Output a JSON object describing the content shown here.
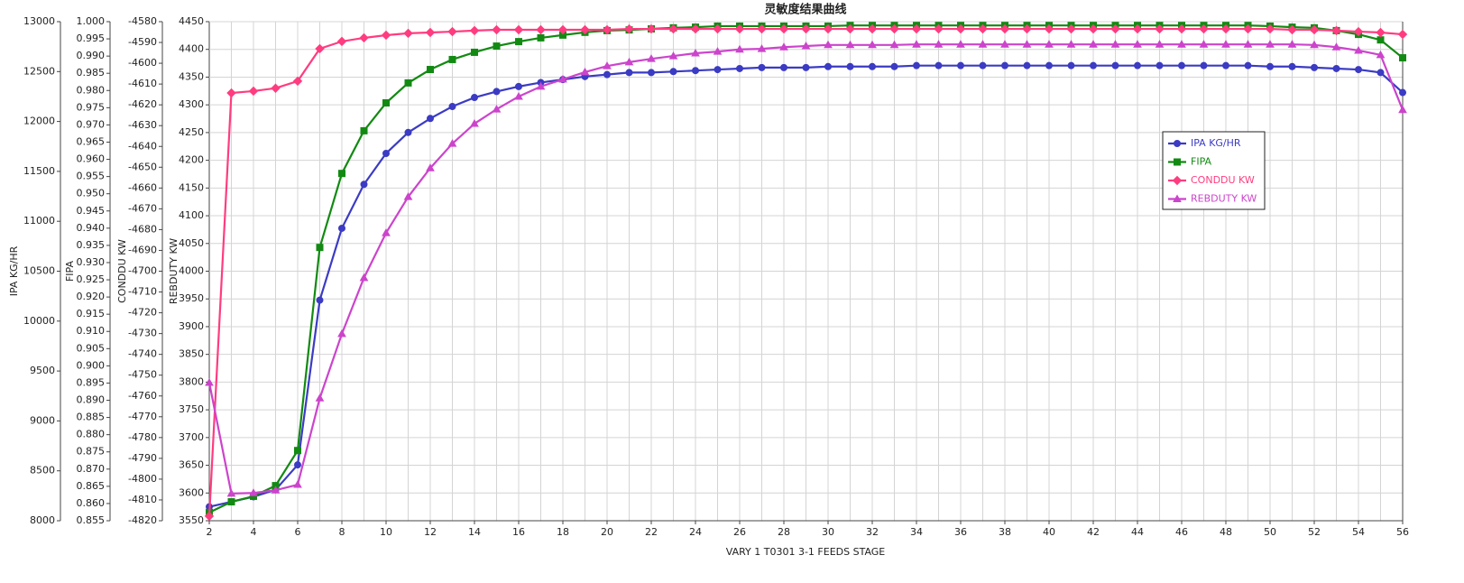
{
  "chart_data": {
    "type": "line",
    "title": "灵敏度结果曲线",
    "x_label": "VARY   1 T0301 3-1 FEEDS STAGE",
    "x": [
      2,
      3,
      4,
      5,
      6,
      7,
      8,
      9,
      10,
      11,
      12,
      13,
      14,
      15,
      16,
      17,
      18,
      19,
      20,
      21,
      22,
      23,
      24,
      25,
      26,
      27,
      28,
      29,
      30,
      31,
      32,
      33,
      34,
      35,
      36,
      37,
      38,
      39,
      40,
      41,
      42,
      43,
      44,
      45,
      46,
      47,
      48,
      49,
      50,
      51,
      52,
      53,
      54,
      55,
      56
    ],
    "xlim": [
      2,
      56
    ],
    "xticks": [
      2,
      4,
      6,
      8,
      10,
      12,
      14,
      16,
      18,
      20,
      22,
      24,
      26,
      28,
      30,
      32,
      34,
      36,
      38,
      40,
      42,
      44,
      46,
      48,
      50,
      52,
      54,
      56
    ],
    "x_minor_ticks": [
      3,
      5,
      7,
      9,
      11,
      13,
      15,
      17,
      19,
      21,
      23,
      25,
      27,
      29,
      31,
      33,
      35,
      37,
      39,
      41,
      43,
      45,
      47,
      49,
      51,
      53,
      55
    ],
    "grid": true,
    "legend": "right",
    "y_axes": [
      {
        "label": "IPA KG/HR",
        "ylim": [
          8000,
          13000
        ],
        "yticks": [
          8000,
          8500,
          9000,
          9500,
          10000,
          10500,
          11000,
          11500,
          12000,
          12500,
          13000
        ]
      },
      {
        "label": "FIPA",
        "ylim": [
          0.855,
          1.0
        ],
        "yticks": [
          0.855,
          {
            "value": 0.86,
            "label": "0.860"
          },
          0.865,
          {
            "value": 0.87,
            "label": "0.870"
          },
          0.875,
          {
            "value": 0.88,
            "label": "0.880"
          },
          0.885,
          {
            "value": 0.89,
            "label": "0.890"
          },
          0.895,
          {
            "value": 0.9,
            "label": "0.900"
          },
          0.905,
          {
            "value": 0.91,
            "label": "0.910"
          },
          0.915,
          {
            "value": 0.92,
            "label": "0.920"
          },
          0.925,
          {
            "value": 0.93,
            "label": "0.930"
          },
          0.935,
          {
            "value": 0.94,
            "label": "0.940"
          },
          0.945,
          {
            "value": 0.95,
            "label": "0.950"
          },
          0.955,
          {
            "value": 0.96,
            "label": "0.960"
          },
          0.965,
          {
            "value": 0.97,
            "label": "0.970"
          },
          0.975,
          {
            "value": 0.98,
            "label": "0.980"
          },
          0.985,
          {
            "value": 0.99,
            "label": "0.990"
          },
          0.995,
          {
            "value": 1.0,
            "label": "1.000"
          }
        ]
      },
      {
        "label": "CONDDU KW",
        "ylim": [
          -4820,
          -4580
        ],
        "yticks": [
          -4820,
          -4810,
          -4800,
          -4790,
          -4780,
          -4770,
          -4760,
          -4750,
          -4740,
          -4730,
          -4720,
          -4710,
          -4700,
          -4690,
          -4680,
          -4670,
          -4660,
          -4650,
          -4640,
          -4630,
          -4620,
          -4610,
          -4600,
          -4590,
          -4580
        ]
      },
      {
        "label": "REBDUTY KW",
        "ylim": [
          3550,
          4450
        ],
        "yticks": [
          3550,
          3600,
          3650,
          3700,
          3750,
          3800,
          3850,
          3900,
          3950,
          4000,
          4050,
          4100,
          4150,
          4200,
          4250,
          4300,
          4350,
          4400,
          4450
        ]
      }
    ],
    "series": [
      {
        "name": "IPA KG/HR",
        "color": "#3b3bc4",
        "marker": "circle",
        "axis": 0,
        "values": [
          8140,
          8190,
          8240,
          8310,
          8560,
          10210,
          10930,
          11370,
          11680,
          11890,
          12030,
          12150,
          12240,
          12300,
          12350,
          12390,
          12420,
          12450,
          12470,
          12490,
          12490,
          12500,
          12510,
          12520,
          12530,
          12540,
          12540,
          12540,
          12550,
          12550,
          12550,
          12550,
          12560,
          12560,
          12560,
          12560,
          12560,
          12560,
          12560,
          12560,
          12560,
          12560,
          12560,
          12560,
          12560,
          12560,
          12560,
          12560,
          12550,
          12550,
          12540,
          12530,
          12520,
          12490,
          12290
        ]
      },
      {
        "name": "FIPA",
        "color": "#128a12",
        "marker": "square",
        "axis": 1,
        "values": [
          0.8574,
          0.8605,
          0.8621,
          0.8652,
          0.8754,
          0.9344,
          0.9559,
          0.9683,
          0.9764,
          0.9822,
          0.9861,
          0.989,
          0.9911,
          0.9929,
          0.9942,
          0.9953,
          0.9961,
          0.9969,
          0.9974,
          0.9976,
          0.9979,
          0.9982,
          0.9984,
          0.9987,
          0.9987,
          0.9987,
          0.9987,
          0.9987,
          0.9987,
          0.9989,
          0.9989,
          0.9989,
          0.9989,
          0.9989,
          0.9989,
          0.9989,
          0.9989,
          0.9989,
          0.9989,
          0.9989,
          0.9989,
          0.9989,
          0.9989,
          0.9989,
          0.9989,
          0.9989,
          0.9989,
          0.9989,
          0.9987,
          0.9984,
          0.9982,
          0.9974,
          0.9963,
          0.9947,
          0.9895
        ]
      },
      {
        "name": "CONDDU KW",
        "color": "#ff3c80",
        "marker": "diamond",
        "axis": 2,
        "values": [
          -4817.8,
          -4614.3,
          -4613.4,
          -4612,
          -4608.6,
          -4593,
          -4589.5,
          -4587.8,
          -4586.5,
          -4585.6,
          -4585.2,
          -4584.8,
          -4584.3,
          -4583.9,
          -4583.9,
          -4583.9,
          -4583.9,
          -4583.9,
          -4583.9,
          -4583.5,
          -4583.5,
          -4583.5,
          -4583.5,
          -4583.5,
          -4583.5,
          -4583.5,
          -4583.5,
          -4583.5,
          -4583.5,
          -4583.5,
          -4583.5,
          -4583.5,
          -4583.5,
          -4583.5,
          -4583.5,
          -4583.5,
          -4583.5,
          -4583.5,
          -4583.5,
          -4583.5,
          -4583.5,
          -4583.5,
          -4583.5,
          -4583.5,
          -4583.5,
          -4583.5,
          -4583.5,
          -4583.5,
          -4583.5,
          -4583.9,
          -4583.9,
          -4584.3,
          -4584.8,
          -4585.2,
          -4586.1
        ]
      },
      {
        "name": "REBDUTY KW",
        "color": "#cc44cc",
        "marker": "triangle",
        "axis": 3,
        "values": [
          3799,
          3599,
          3600,
          3605,
          3615,
          3771,
          3887,
          3988,
          4069,
          4134,
          4186,
          4230,
          4266,
          4292,
          4315,
          4333,
          4346,
          4359,
          4370,
          4377,
          4383,
          4388,
          4393,
          4396,
          4400,
          4401,
          4404,
          4406,
          4408,
          4408,
          4408,
          4408,
          4409,
          4409,
          4409,
          4409,
          4409,
          4409,
          4409,
          4409,
          4409,
          4409,
          4409,
          4409,
          4409,
          4409,
          4409,
          4409,
          4409,
          4409,
          4408,
          4404,
          4398,
          4390,
          4291
        ]
      }
    ]
  }
}
